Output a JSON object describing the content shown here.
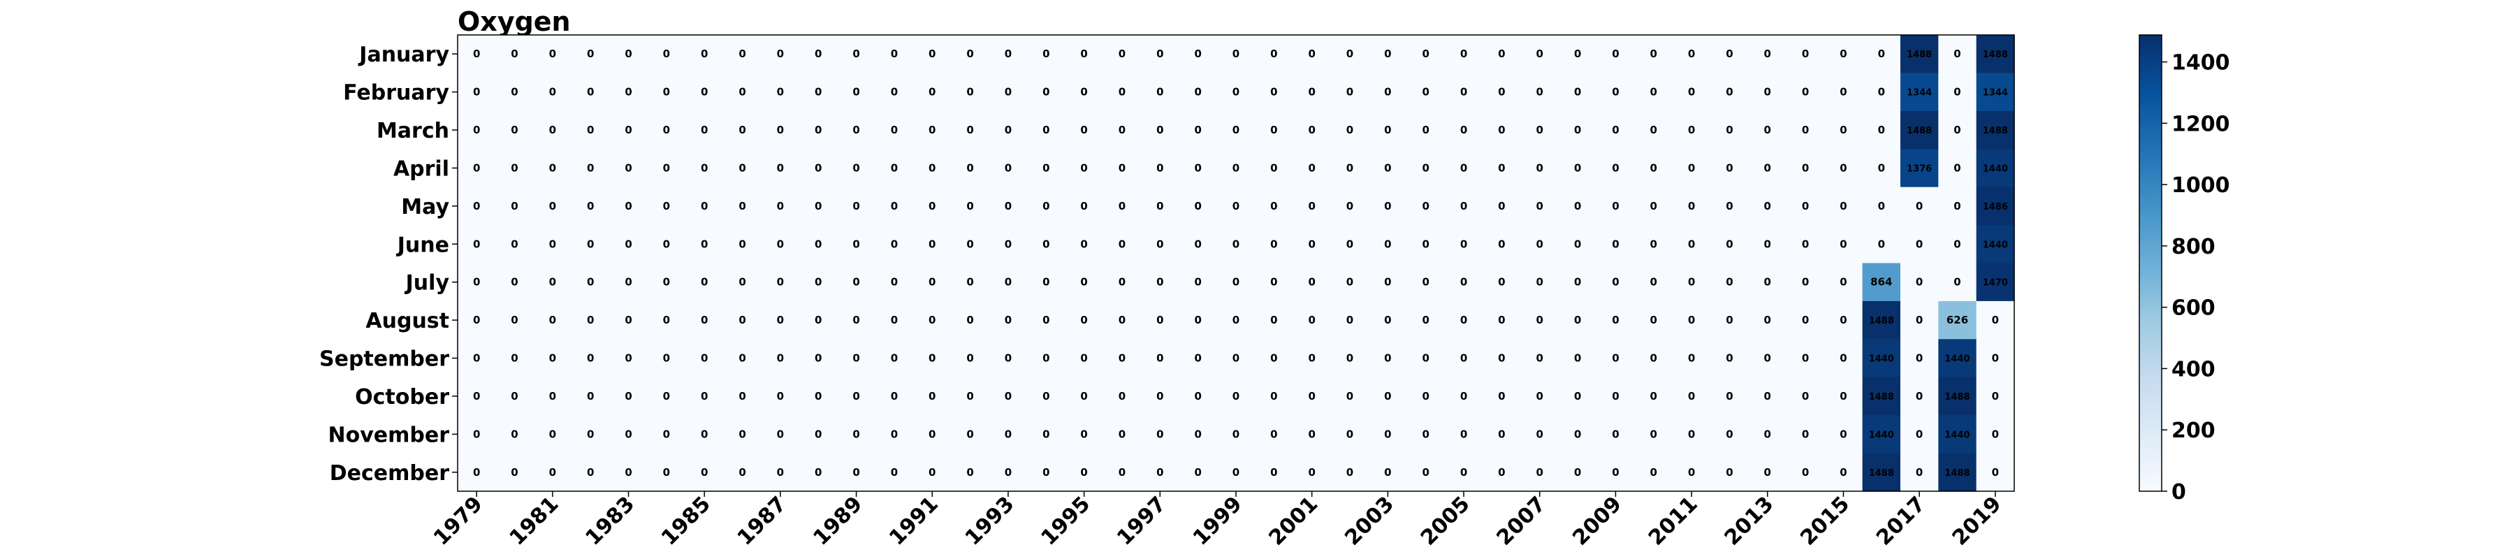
{
  "chart_data": {
    "type": "heatmap",
    "title": "Oxygen",
    "xlabel": "",
    "ylabel": "",
    "colormap": "Blues",
    "vmin": 0,
    "vmax": 1488,
    "colorbar_ticks": [
      "0",
      "200",
      "400",
      "600",
      "800",
      "1000",
      "1200",
      "1400"
    ],
    "x_tick_labels": [
      "1979",
      "1981",
      "1983",
      "1985",
      "1987",
      "1989",
      "1991",
      "1993",
      "1995",
      "1997",
      "1999",
      "2001",
      "2003",
      "2005",
      "2007",
      "2009",
      "2011",
      "2013",
      "2015",
      "2017",
      "2019"
    ],
    "years": [
      1979,
      1980,
      1981,
      1982,
      1983,
      1984,
      1985,
      1986,
      1987,
      1988,
      1989,
      1990,
      1991,
      1992,
      1993,
      1994,
      1995,
      1996,
      1997,
      1998,
      1999,
      2000,
      2001,
      2002,
      2003,
      2004,
      2005,
      2006,
      2007,
      2008,
      2009,
      2010,
      2011,
      2012,
      2013,
      2014,
      2015,
      2016,
      2017,
      2018,
      2019
    ],
    "months": [
      "January",
      "February",
      "March",
      "April",
      "May",
      "June",
      "July",
      "August",
      "September",
      "October",
      "November",
      "December"
    ],
    "nonzero": [
      {
        "month": "January",
        "year": 2017,
        "value": 1488
      },
      {
        "month": "January",
        "year": 2019,
        "value": 1488
      },
      {
        "month": "February",
        "year": 2017,
        "value": 1344
      },
      {
        "month": "February",
        "year": 2019,
        "value": 1344
      },
      {
        "month": "March",
        "year": 2017,
        "value": 1488
      },
      {
        "month": "March",
        "year": 2019,
        "value": 1488
      },
      {
        "month": "April",
        "year": 2017,
        "value": 1376
      },
      {
        "month": "April",
        "year": 2019,
        "value": 1440
      },
      {
        "month": "May",
        "year": 2019,
        "value": 1486
      },
      {
        "month": "June",
        "year": 2019,
        "value": 1440
      },
      {
        "month": "July",
        "year": 2016,
        "value": 864
      },
      {
        "month": "July",
        "year": 2019,
        "value": 1470
      },
      {
        "month": "August",
        "year": 2016,
        "value": 1488
      },
      {
        "month": "August",
        "year": 2018,
        "value": 626
      },
      {
        "month": "September",
        "year": 2016,
        "value": 1440
      },
      {
        "month": "September",
        "year": 2018,
        "value": 1440
      },
      {
        "month": "October",
        "year": 2016,
        "value": 1488
      },
      {
        "month": "October",
        "year": 2018,
        "value": 1488
      },
      {
        "month": "November",
        "year": 2016,
        "value": 1440
      },
      {
        "month": "November",
        "year": 2018,
        "value": 1440
      },
      {
        "month": "December",
        "year": 2016,
        "value": 1488
      },
      {
        "month": "December",
        "year": 2018,
        "value": 1488
      }
    ],
    "grid": false,
    "colorbar_position": "right"
  }
}
